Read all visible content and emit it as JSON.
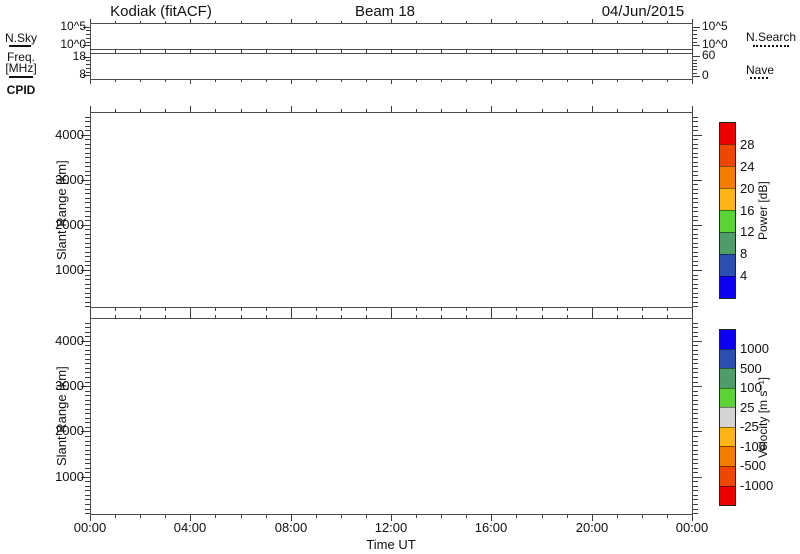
{
  "header": {
    "title": "Kodiak (fitACF)",
    "beam": "Beam 18",
    "date": "04/Jun/2015"
  },
  "left_legend": {
    "nsky": "N.Sky",
    "freq_line1": "Freq.",
    "freq_line2": "[MHz]",
    "cpid": "CPID"
  },
  "right_legend": {
    "nsearch": "N.Search",
    "nave": "Nave"
  },
  "x_axis": {
    "label": "Time UT",
    "tick_labels": [
      "00:00",
      "04:00",
      "08:00",
      "12:00",
      "16:00",
      "20:00",
      "00:00"
    ],
    "tick_hours": [
      0,
      4,
      8,
      12,
      16,
      20,
      24
    ],
    "minor_step_hours": 1,
    "lim_hours": [
      0,
      24
    ]
  },
  "chart_data": [
    {
      "name": "noise",
      "type": "line",
      "left_label": "N.Sky",
      "left_line_style": "solid",
      "right_label": "N.Search",
      "right_line_style": "dotted",
      "yscale": "log",
      "ylim_exponents": [
        -1,
        6
      ],
      "ytick_labels": [
        "10^5",
        "10^0"
      ],
      "ytick_exponents": [
        5,
        0
      ],
      "series": []
    },
    {
      "name": "frequency",
      "type": "line",
      "left_label": "Freq. [MHz]",
      "left_line_style": "solid",
      "right_label": "Nave",
      "right_line_style": "dotted",
      "ylim": [
        6,
        20
      ],
      "yticks": [
        18,
        8
      ],
      "y_minor_step": 2,
      "right_ylim": [
        -10,
        70
      ],
      "right_yticks": [
        60,
        0
      ],
      "right_minor_step": 10,
      "series": []
    },
    {
      "name": "power",
      "type": "heatmap",
      "ylabel": "Slant Range [km]",
      "ylim_km": [
        180,
        4500
      ],
      "ytick_km": [
        1000,
        2000,
        3000,
        4000
      ],
      "y_minor_step_km": 100,
      "colorbar": {
        "label": "Power [dB]",
        "boundary_labels": [
          "28",
          "24",
          "20",
          "16",
          "12",
          "8",
          "4"
        ],
        "colors_top_to_bottom": [
          "#ec0000",
          "#ef4700",
          "#f47d00",
          "#fcb514",
          "#5bd335",
          "#4e9c68",
          "#2c50b2",
          "#0d00f2"
        ]
      },
      "points": []
    },
    {
      "name": "velocity",
      "type": "heatmap",
      "ylabel": "Slant Range [km]",
      "ylim_km": [
        180,
        4500
      ],
      "ytick_km": [
        1000,
        2000,
        3000,
        4000
      ],
      "y_minor_step_km": 100,
      "colorbar": {
        "label": "Velocity [m s⁻¹]",
        "boundary_labels": [
          "1000",
          "500",
          "100",
          "25",
          "-25",
          "-100",
          "-500",
          "-1000"
        ],
        "colors_top_to_bottom": [
          "#0d00f2",
          "#2c50b2",
          "#4e9c68",
          "#5bd335",
          "#d4d4d4",
          "#fcb514",
          "#f47d00",
          "#ef4700",
          "#ec0000"
        ]
      },
      "points": []
    }
  ]
}
